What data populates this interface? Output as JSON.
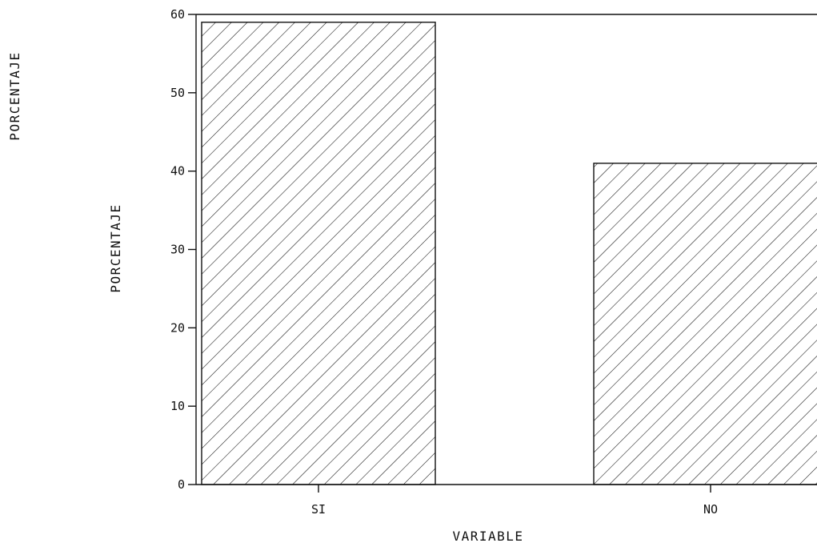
{
  "chart_data": {
    "type": "bar",
    "categories": [
      "SI",
      "NO"
    ],
    "values": [
      59,
      41
    ],
    "xlabel": "VARIABLE",
    "ylabel": "PORCENTAJE",
    "page_side_label": "PORCENTAJE",
    "ylim": [
      0,
      60
    ],
    "yticks": [
      0,
      10,
      20,
      30,
      40,
      50,
      60
    ],
    "ytick_labels": [
      "0",
      "10",
      "20",
      "30",
      "40",
      "50",
      "60"
    ],
    "grid": false,
    "legend": "none",
    "bar_fill": "diagonal hatch",
    "colors": {
      "ink": "#111111",
      "background": "#ffffff"
    }
  }
}
